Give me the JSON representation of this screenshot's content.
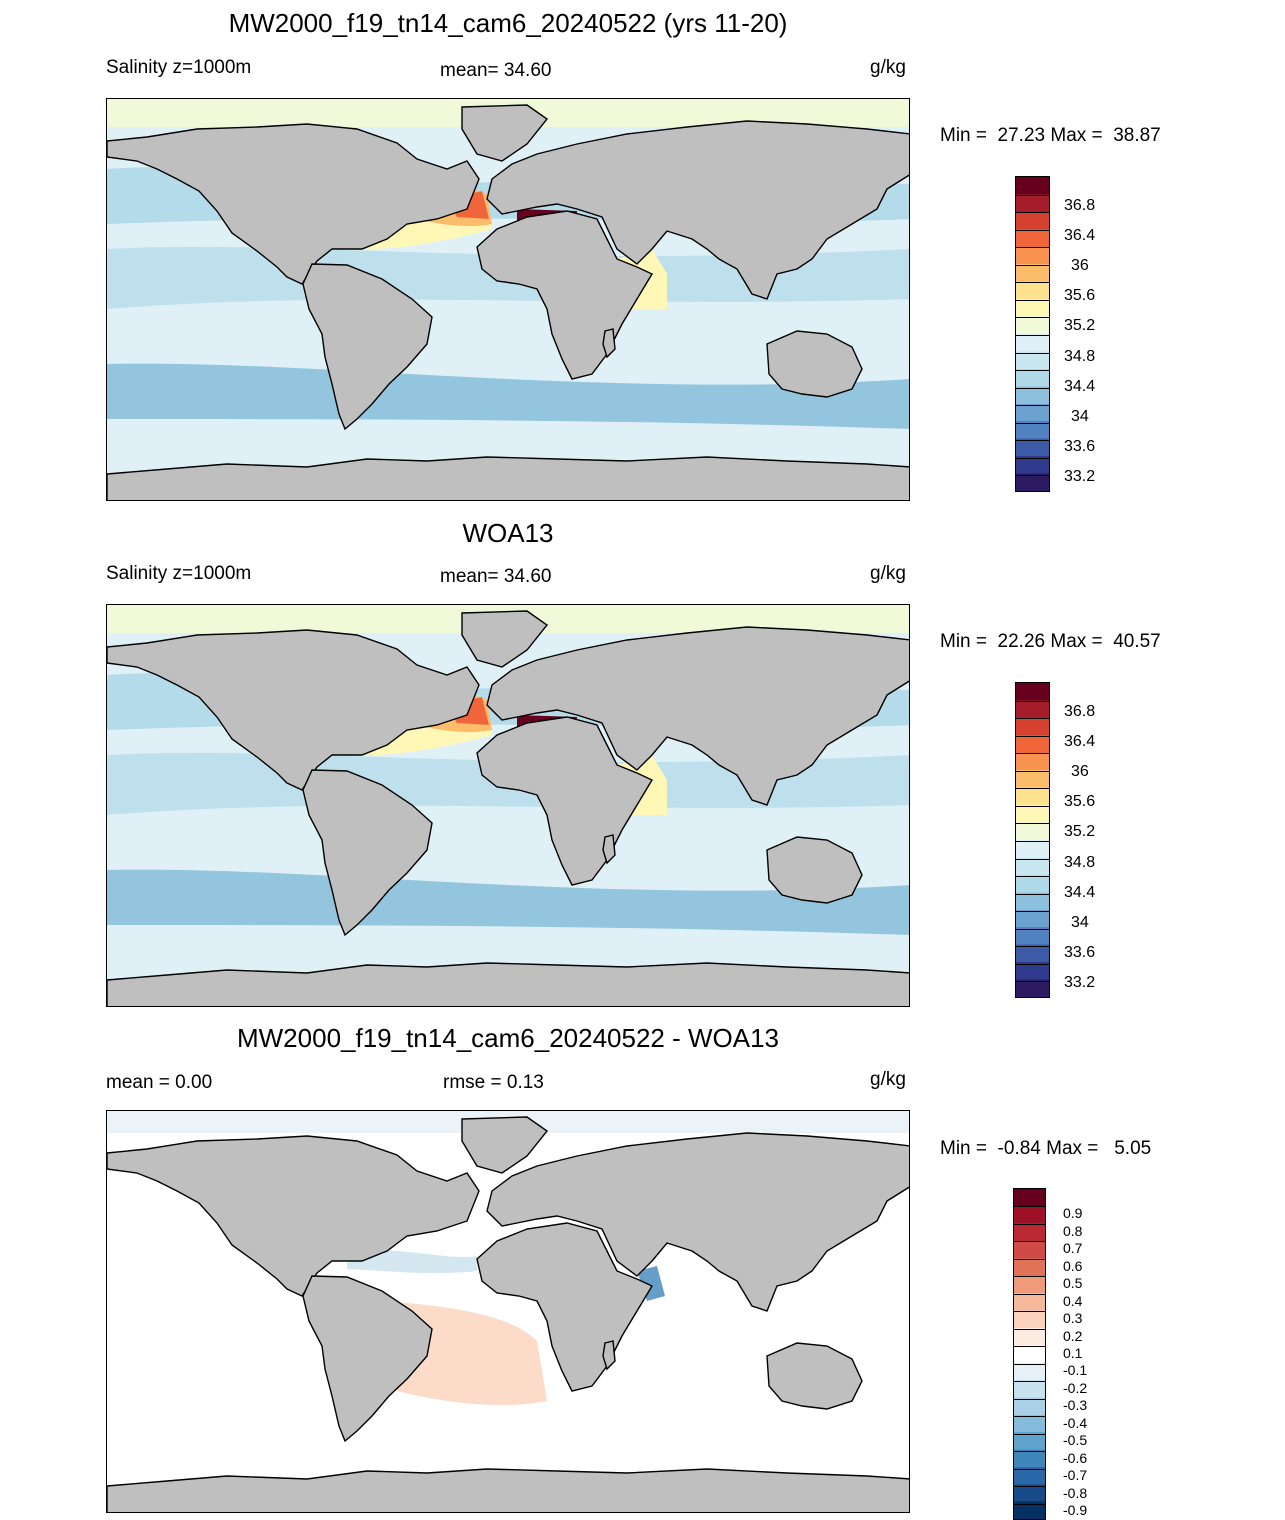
{
  "panels": [
    {
      "title": "MW2000_f19_tn14_cam6_20240522 (yrs 11-20)",
      "left": "Salinity z=1000m",
      "center": "mean=  34.60",
      "units": "g/kg",
      "minmax": "Min =  27.23 Max =  38.87",
      "levels": [
        "36.8",
        "36.4",
        "36",
        "35.6",
        "35.2",
        "34.8",
        "34.4",
        "34",
        "33.6",
        "33.2"
      ],
      "colors": [
        "#67001f",
        "#a51d2b",
        "#d6412f",
        "#f0653a",
        "#f7924f",
        "#fbbd6a",
        "#fde18d",
        "#fff7b6",
        "#f1fad8",
        "#dff1f6",
        "#c9e7f1",
        "#afd8e9",
        "#8cc0dc",
        "#6ba2cf",
        "#5181c0",
        "#3c5aa6",
        "#2f3a8c",
        "#2c1a62"
      ]
    },
    {
      "title": "WOA13",
      "left": "Salinity z=1000m",
      "center": "mean=  34.60",
      "units": "g/kg",
      "minmax": "Min =  22.26 Max =  40.57",
      "levels": [
        "36.8",
        "36.4",
        "36",
        "35.6",
        "35.2",
        "34.8",
        "34.4",
        "34",
        "33.6",
        "33.2"
      ],
      "colors": [
        "#67001f",
        "#a51d2b",
        "#d6412f",
        "#f0653a",
        "#f7924f",
        "#fbbd6a",
        "#fde18d",
        "#fff7b6",
        "#f1fad8",
        "#dff1f6",
        "#c9e7f1",
        "#afd8e9",
        "#8cc0dc",
        "#6ba2cf",
        "#5181c0",
        "#3c5aa6",
        "#2f3a8c",
        "#2c1a62"
      ]
    },
    {
      "title": "MW2000_f19_tn14_cam6_20240522 - WOA13",
      "left": "mean =   0.00",
      "center": "rmse =   0.13",
      "units": "g/kg",
      "minmax": "Min =  -0.84 Max =   5.05",
      "levels": [
        "0.9",
        "0.8",
        "0.7",
        "0.6",
        "0.5",
        "0.4",
        "0.3",
        "0.2",
        "0.1",
        "-0.1",
        "-0.2",
        "-0.3",
        "-0.4",
        "-0.5",
        "-0.6",
        "-0.7",
        "-0.8",
        "-0.9"
      ],
      "colors": [
        "#67001f",
        "#9e1229",
        "#bb2a33",
        "#d04b45",
        "#e07357",
        "#ef9b7a",
        "#f6b89b",
        "#fbd2bc",
        "#fcebe0",
        "#ffffff",
        "#e6f0f6",
        "#c9e1ee",
        "#a9d0e5",
        "#86bcdb",
        "#5fa2cc",
        "#3f86bb",
        "#2a68a7",
        "#174a89",
        "#053061"
      ]
    }
  ],
  "colors": {
    "land": "#bfbfbf",
    "coast": "#000000",
    "ocean_base_1": "#dff1f6",
    "ocean_base_2": "#dff1f6",
    "ocean_base_3": "#ffffff"
  }
}
